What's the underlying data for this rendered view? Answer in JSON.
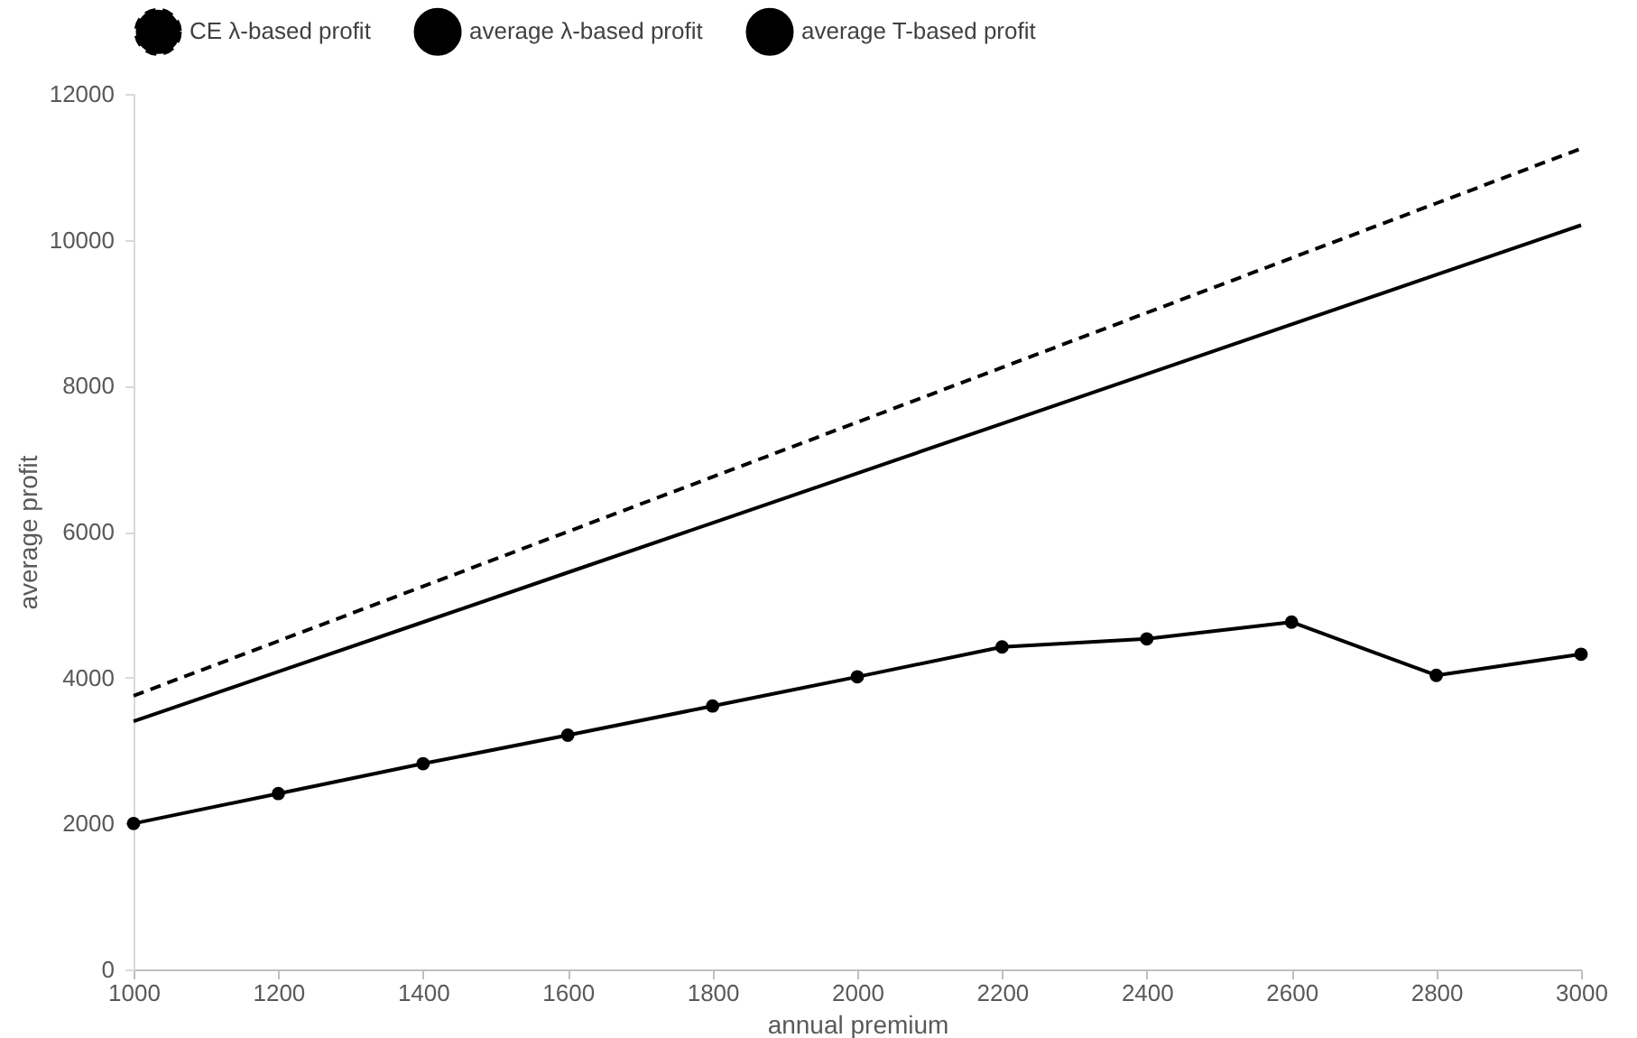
{
  "chart_data": {
    "type": "line",
    "xlabel": "annual premium",
    "ylabel": "average profit",
    "x": [
      1000,
      1200,
      1400,
      1600,
      1800,
      2000,
      2200,
      2400,
      2600,
      2800,
      3000
    ],
    "series": [
      {
        "name": "CE λ-based profit",
        "color": "#000000",
        "line_style": "dashed",
        "marker": "none",
        "values": [
          3750,
          4500,
          5250,
          6000,
          6750,
          7500,
          8250,
          9000,
          9750,
          10500,
          11250
        ]
      },
      {
        "name": "average λ-based profit",
        "color": "#000000",
        "line_style": "solid",
        "marker": "none",
        "values": [
          3400,
          4080,
          4760,
          5440,
          6120,
          6800,
          7480,
          8160,
          8840,
          9520,
          10200
        ]
      },
      {
        "name": "average T-based profit",
        "color": "#000000",
        "line_style": "solid",
        "marker": "circle",
        "values": [
          2000,
          2410,
          2820,
          3210,
          3610,
          4010,
          4420,
          4530,
          4760,
          4030,
          4320
        ]
      }
    ],
    "xlim": [
      1000,
      3000
    ],
    "xticks": [
      1000,
      1200,
      1400,
      1600,
      1800,
      2000,
      2200,
      2400,
      2600,
      2800,
      3000
    ],
    "ylim": [
      0,
      12000
    ],
    "yticks": [
      0,
      2000,
      4000,
      6000,
      8000,
      10000,
      12000
    ],
    "grid": false,
    "legend": "top"
  }
}
